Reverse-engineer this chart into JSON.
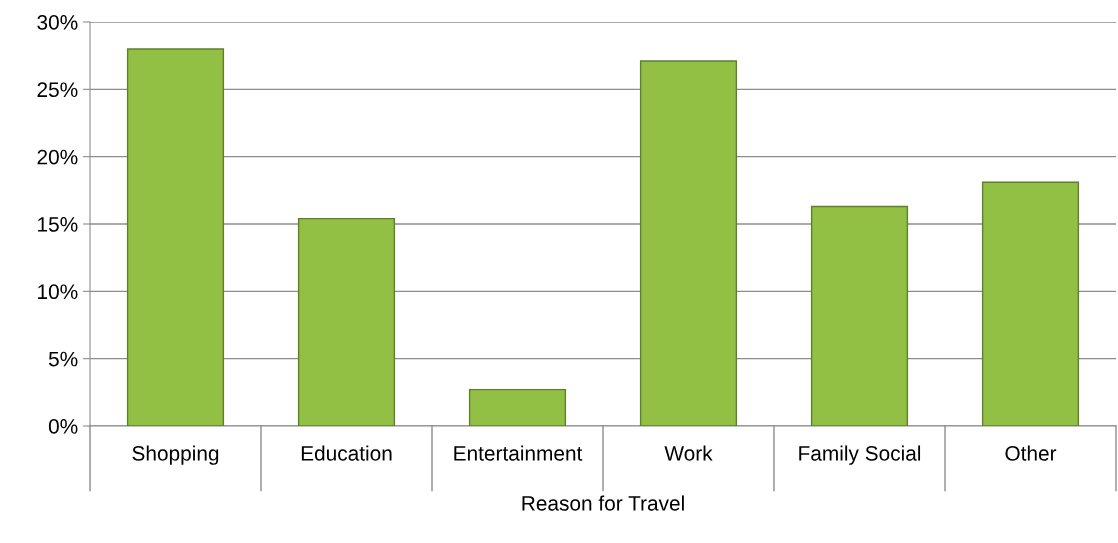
{
  "chart_data": {
    "type": "bar",
    "xlabel": "Reason for Travel",
    "categories": [
      "Shopping",
      "Education",
      "Entertainment",
      "Work",
      "Family Social",
      "Other"
    ],
    "values": [
      28.0,
      15.4,
      2.7,
      27.1,
      16.3,
      18.1
    ],
    "color": "#92c045",
    "ylim": [
      0,
      30
    ],
    "yticks": [
      {
        "value": 0,
        "label": "0%"
      },
      {
        "value": 5,
        "label": "5%"
      },
      {
        "value": 10,
        "label": "10%"
      },
      {
        "value": 15,
        "label": "15%"
      },
      {
        "value": 20,
        "label": "20%"
      },
      {
        "value": 25,
        "label": "25%"
      },
      {
        "value": 30,
        "label": "30%"
      }
    ],
    "grid": "y",
    "legend": false
  }
}
